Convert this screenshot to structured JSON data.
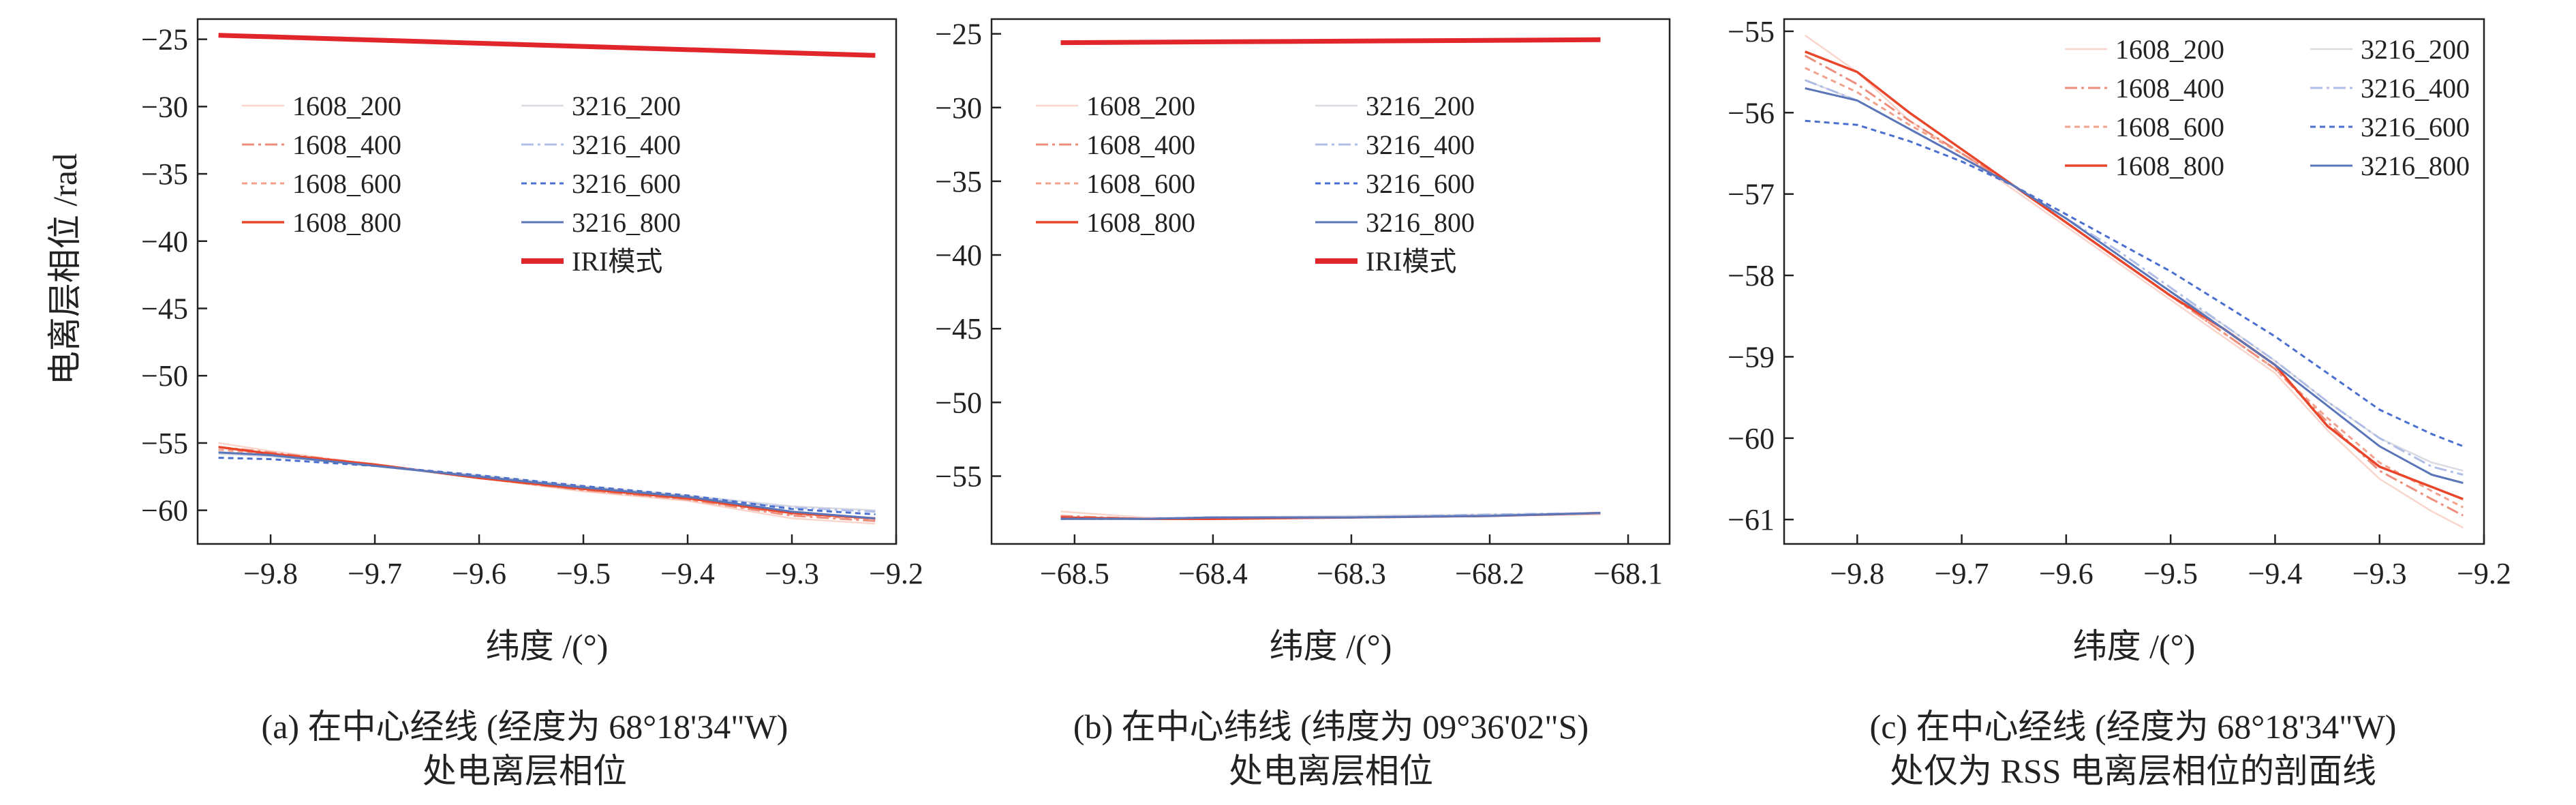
{
  "figure": {
    "ylabel": "电离层相位 /rad",
    "captions": [
      [
        "(a) 在中心经线 (经度为 68°18'34\"W)",
        "处电离层相位"
      ],
      [
        "(b) 在中心纬线 (纬度为 09°36'02\"S)",
        "处电离层相位"
      ],
      [
        "(c) 在中心经线 (经度为 68°18'34\"W)",
        "处仅为 RSS 电离层相位的剖面线"
      ]
    ]
  },
  "series_styles": {
    "1608_200": {
      "color": "#f6b3a3",
      "dash": "",
      "opacity": 0.55,
      "width": 2.5
    },
    "1608_400": {
      "color": "#e8705a",
      "dash": "18 6 4 6",
      "opacity": 0.8,
      "width": 3
    },
    "1608_600": {
      "color": "#f09078",
      "dash": "8 6",
      "opacity": 0.85,
      "width": 3
    },
    "1608_800": {
      "color": "#e8452b",
      "dash": "",
      "opacity": 1,
      "width": 3.5
    },
    "3216_200": {
      "color": "#c9cbd6",
      "dash": "",
      "opacity": 0.7,
      "width": 2.5
    },
    "3216_400": {
      "color": "#a9b8e6",
      "dash": "18 6 4 6",
      "opacity": 0.9,
      "width": 3
    },
    "3216_600": {
      "color": "#4a6fcf",
      "dash": "8 6",
      "opacity": 1,
      "width": 3
    },
    "3216_800": {
      "color": "#5a76b8",
      "dash": "",
      "opacity": 1,
      "width": 3
    },
    "IRI模式": {
      "color": "#e0262b",
      "dash": "",
      "opacity": 1,
      "width": 7
    }
  },
  "chart_data": [
    {
      "type": "line",
      "xlabel": "纬度 /(°)",
      "ylabel": "电离层相位 /rad",
      "xlim": [
        -9.87,
        -9.2
      ],
      "ylim": [
        -62.5,
        -23.5
      ],
      "xticks": [
        -9.8,
        -9.7,
        -9.6,
        -9.5,
        -9.4,
        -9.3,
        -9.2
      ],
      "yticks": [
        -25,
        -30,
        -35,
        -40,
        -45,
        -50,
        -55,
        -60
      ],
      "legend": {
        "position": "upper-left",
        "entries": [
          "1608_200",
          "3216_200",
          "1608_400",
          "3216_400",
          "1608_600",
          "3216_600",
          "1608_800",
          "3216_800",
          "IRI模式"
        ]
      },
      "series": [
        {
          "name": "IRI模式",
          "x": [
            -9.85,
            -9.22
          ],
          "y": [
            -24.7,
            -26.2
          ]
        },
        {
          "name": "1608_200",
          "x": [
            -9.85,
            -9.8,
            -9.7,
            -9.6,
            -9.5,
            -9.4,
            -9.3,
            -9.22
          ],
          "y": [
            -55.0,
            -55.6,
            -56.6,
            -57.6,
            -58.6,
            -59.3,
            -60.6,
            -61.0
          ]
        },
        {
          "name": "1608_400",
          "x": [
            -9.85,
            -9.8,
            -9.7,
            -9.6,
            -9.5,
            -9.4,
            -9.3,
            -9.22
          ],
          "y": [
            -55.3,
            -55.7,
            -56.6,
            -57.6,
            -58.5,
            -59.2,
            -60.4,
            -60.8
          ]
        },
        {
          "name": "1608_600",
          "x": [
            -9.85,
            -9.8,
            -9.7,
            -9.6,
            -9.5,
            -9.4,
            -9.3,
            -9.22
          ],
          "y": [
            -55.5,
            -55.8,
            -56.6,
            -57.6,
            -58.5,
            -59.2,
            -60.3,
            -60.7
          ]
        },
        {
          "name": "1608_800",
          "x": [
            -9.85,
            -9.8,
            -9.7,
            -9.6,
            -9.5,
            -9.4,
            -9.3,
            -9.22
          ],
          "y": [
            -55.3,
            -55.8,
            -56.6,
            -57.6,
            -58.4,
            -59.1,
            -60.2,
            -60.6
          ]
        },
        {
          "name": "3216_200",
          "x": [
            -9.85,
            -9.8,
            -9.7,
            -9.6,
            -9.5,
            -9.4,
            -9.3,
            -9.22
          ],
          "y": [
            -55.8,
            -56.0,
            -56.7,
            -57.4,
            -58.2,
            -58.9,
            -59.7,
            -60.0
          ]
        },
        {
          "name": "3216_400",
          "x": [
            -9.85,
            -9.8,
            -9.7,
            -9.6,
            -9.5,
            -9.4,
            -9.3,
            -9.22
          ],
          "y": [
            -55.7,
            -55.9,
            -56.7,
            -57.5,
            -58.3,
            -59.0,
            -59.8,
            -60.1
          ]
        },
        {
          "name": "3216_600",
          "x": [
            -9.85,
            -9.8,
            -9.7,
            -9.6,
            -9.5,
            -9.4,
            -9.3,
            -9.22
          ],
          "y": [
            -56.1,
            -56.2,
            -56.7,
            -57.4,
            -58.2,
            -58.9,
            -59.9,
            -60.3
          ]
        },
        {
          "name": "3216_800",
          "x": [
            -9.85,
            -9.8,
            -9.7,
            -9.6,
            -9.5,
            -9.4,
            -9.3,
            -9.22
          ],
          "y": [
            -55.7,
            -55.9,
            -56.7,
            -57.5,
            -58.3,
            -59.0,
            -60.1,
            -60.6
          ]
        }
      ]
    },
    {
      "type": "line",
      "xlabel": "纬度 /(°)",
      "ylabel": "",
      "xlim": [
        -68.56,
        -68.07
      ],
      "ylim": [
        -59.6,
        -24.0
      ],
      "xticks": [
        -68.5,
        -68.4,
        -68.3,
        -68.2,
        -68.1
      ],
      "yticks": [
        -25,
        -30,
        -35,
        -40,
        -45,
        -50,
        -55
      ],
      "legend": {
        "position": "upper-left",
        "entries": [
          "1608_200",
          "3216_200",
          "1608_400",
          "3216_400",
          "1608_600",
          "3216_600",
          "1608_800",
          "3216_800",
          "IRI模式"
        ]
      },
      "series": [
        {
          "name": "IRI模式",
          "x": [
            -68.51,
            -68.12
          ],
          "y": [
            -25.6,
            -25.4
          ]
        },
        {
          "name": "1608_200",
          "x": [
            -68.51,
            -68.45,
            -68.4,
            -68.3,
            -68.2,
            -68.12
          ],
          "y": [
            -57.4,
            -57.8,
            -57.9,
            -57.8,
            -57.7,
            -57.6
          ]
        },
        {
          "name": "1608_400",
          "x": [
            -68.51,
            -68.45,
            -68.4,
            -68.3,
            -68.2,
            -68.12
          ],
          "y": [
            -57.7,
            -57.9,
            -57.9,
            -57.8,
            -57.7,
            -57.5
          ]
        },
        {
          "name": "1608_600",
          "x": [
            -68.51,
            -68.45,
            -68.4,
            -68.3,
            -68.2,
            -68.12
          ],
          "y": [
            -57.8,
            -57.9,
            -57.9,
            -57.8,
            -57.7,
            -57.5
          ]
        },
        {
          "name": "1608_800",
          "x": [
            -68.51,
            -68.45,
            -68.4,
            -68.3,
            -68.2,
            -68.12
          ],
          "y": [
            -57.8,
            -57.9,
            -57.9,
            -57.8,
            -57.7,
            -57.5
          ]
        },
        {
          "name": "3216_200",
          "x": [
            -68.51,
            -68.45,
            -68.4,
            -68.3,
            -68.2,
            -68.12
          ],
          "y": [
            -57.9,
            -57.9,
            -57.8,
            -57.7,
            -57.6,
            -57.5
          ]
        },
        {
          "name": "3216_400",
          "x": [
            -68.51,
            -68.45,
            -68.4,
            -68.3,
            -68.2,
            -68.12
          ],
          "y": [
            -57.9,
            -57.9,
            -57.8,
            -57.8,
            -57.6,
            -57.5
          ]
        },
        {
          "name": "3216_600",
          "x": [
            -68.51,
            -68.45,
            -68.4,
            -68.3,
            -68.2,
            -68.12
          ],
          "y": [
            -57.9,
            -57.9,
            -57.8,
            -57.8,
            -57.7,
            -57.5
          ]
        },
        {
          "name": "3216_800",
          "x": [
            -68.51,
            -68.45,
            -68.4,
            -68.3,
            -68.2,
            -68.12
          ],
          "y": [
            -57.9,
            -57.9,
            -57.8,
            -57.8,
            -57.7,
            -57.5
          ]
        }
      ]
    },
    {
      "type": "line",
      "xlabel": "纬度 /(°)",
      "ylabel": "",
      "xlim": [
        -9.87,
        -9.2
      ],
      "ylim": [
        -61.3,
        -54.85
      ],
      "xticks": [
        -9.8,
        -9.7,
        -9.6,
        -9.5,
        -9.4,
        -9.3,
        -9.2
      ],
      "yticks": [
        -55,
        -56,
        -57,
        -58,
        -59,
        -60,
        -61
      ],
      "legend": {
        "position": "upper-right",
        "entries": [
          "1608_200",
          "3216_200",
          "1608_400",
          "3216_400",
          "1608_600",
          "3216_600",
          "1608_800",
          "3216_800"
        ]
      },
      "series": [
        {
          "name": "1608_200",
          "x": [
            -9.85,
            -9.8,
            -9.75,
            -9.7,
            -9.65,
            -9.6,
            -9.55,
            -9.5,
            -9.45,
            -9.4,
            -9.35,
            -9.3,
            -9.25,
            -9.22
          ],
          "y": [
            -55.05,
            -55.5,
            -56.1,
            -56.5,
            -56.95,
            -57.4,
            -57.85,
            -58.3,
            -58.75,
            -59.2,
            -59.9,
            -60.5,
            -60.9,
            -61.1
          ]
        },
        {
          "name": "1608_400",
          "x": [
            -9.85,
            -9.8,
            -9.75,
            -9.7,
            -9.65,
            -9.6,
            -9.55,
            -9.5,
            -9.45,
            -9.4,
            -9.35,
            -9.3,
            -9.25,
            -9.22
          ],
          "y": [
            -55.3,
            -55.65,
            -56.1,
            -56.5,
            -56.9,
            -57.35,
            -57.8,
            -58.25,
            -58.7,
            -59.15,
            -59.8,
            -60.4,
            -60.75,
            -60.95
          ]
        },
        {
          "name": "1608_600",
          "x": [
            -9.85,
            -9.8,
            -9.75,
            -9.7,
            -9.65,
            -9.6,
            -9.55,
            -9.5,
            -9.45,
            -9.4,
            -9.35,
            -9.3,
            -9.25,
            -9.22
          ],
          "y": [
            -55.45,
            -55.75,
            -56.15,
            -56.5,
            -56.9,
            -57.35,
            -57.8,
            -58.25,
            -58.7,
            -59.15,
            -59.75,
            -60.3,
            -60.65,
            -60.85
          ]
        },
        {
          "name": "1608_800",
          "x": [
            -9.85,
            -9.8,
            -9.75,
            -9.7,
            -9.65,
            -9.6,
            -9.55,
            -9.5,
            -9.45,
            -9.4,
            -9.35,
            -9.3,
            -9.25,
            -9.22
          ],
          "y": [
            -55.25,
            -55.5,
            -56.0,
            -56.45,
            -56.9,
            -57.35,
            -57.8,
            -58.25,
            -58.65,
            -59.1,
            -59.85,
            -60.35,
            -60.6,
            -60.75
          ]
        },
        {
          "name": "3216_200",
          "x": [
            -9.85,
            -9.8,
            -9.75,
            -9.7,
            -9.65,
            -9.6,
            -9.55,
            -9.5,
            -9.45,
            -9.4,
            -9.35,
            -9.3,
            -9.25,
            -9.22
          ],
          "y": [
            -55.6,
            -55.85,
            -56.2,
            -56.55,
            -56.9,
            -57.3,
            -57.75,
            -58.2,
            -58.6,
            -59.05,
            -59.55,
            -60.0,
            -60.3,
            -60.4
          ]
        },
        {
          "name": "3216_400",
          "x": [
            -9.85,
            -9.8,
            -9.75,
            -9.7,
            -9.65,
            -9.6,
            -9.55,
            -9.5,
            -9.45,
            -9.4,
            -9.35,
            -9.3,
            -9.25,
            -9.22
          ],
          "y": [
            -55.6,
            -55.85,
            -56.2,
            -56.55,
            -56.9,
            -57.3,
            -57.7,
            -58.15,
            -58.6,
            -59.05,
            -59.55,
            -60.0,
            -60.35,
            -60.45
          ]
        },
        {
          "name": "3216_600",
          "x": [
            -9.85,
            -9.8,
            -9.75,
            -9.7,
            -9.65,
            -9.6,
            -9.55,
            -9.5,
            -9.45,
            -9.4,
            -9.35,
            -9.3,
            -9.25,
            -9.22
          ],
          "y": [
            -56.1,
            -56.15,
            -56.35,
            -56.6,
            -56.9,
            -57.25,
            -57.6,
            -57.95,
            -58.35,
            -58.75,
            -59.2,
            -59.65,
            -59.95,
            -60.1
          ]
        },
        {
          "name": "3216_800",
          "x": [
            -9.85,
            -9.8,
            -9.75,
            -9.7,
            -9.65,
            -9.6,
            -9.55,
            -9.5,
            -9.45,
            -9.4,
            -9.35,
            -9.3,
            -9.25,
            -9.22
          ],
          "y": [
            -55.7,
            -55.85,
            -56.2,
            -56.55,
            -56.9,
            -57.3,
            -57.75,
            -58.2,
            -58.65,
            -59.1,
            -59.6,
            -60.1,
            -60.45,
            -60.55
          ]
        }
      ]
    }
  ]
}
